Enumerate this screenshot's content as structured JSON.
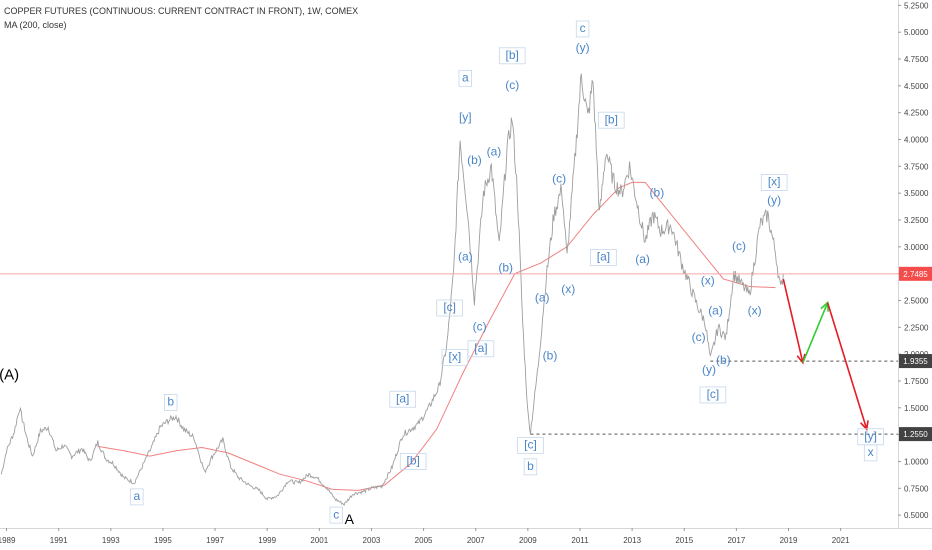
{
  "header": {
    "title": "COPPER FUTURES (CONTINUOUS: CURRENT CONTRACT IN FRONT), 1W, COMEX",
    "indicator": "MA (200, close)"
  },
  "chart_data": {
    "type": "line",
    "title": "COPPER FUTURES (CONTINUOUS: CURRENT CONTRACT IN FRONT), 1W, COMEX",
    "xlabel": "",
    "ylabel": "",
    "xlim": [
      1988.75,
      2023.2
    ],
    "ylim": [
      0.38,
      5.3
    ],
    "x_ticks": [
      "1989",
      "1991",
      "1993",
      "1995",
      "1997",
      "1999",
      "2001",
      "2003",
      "2005",
      "2007",
      "2009",
      "2011",
      "2013",
      "2015",
      "2017",
      "2019",
      "2021"
    ],
    "y_ticks": [
      "0.5000",
      "0.7500",
      "1.0000",
      "1.2500",
      "1.5000",
      "1.7500",
      "2.0000",
      "2.2500",
      "2.5000",
      "2.7500",
      "3.0000",
      "3.2500",
      "3.5000",
      "3.7500",
      "4.0000",
      "4.2500",
      "4.5000",
      "4.7500",
      "5.0000",
      "5.2500"
    ],
    "grid": false,
    "colors": {
      "price": "#9e9e9e",
      "ma": "#f08080",
      "label": "#4a86c8",
      "down_arrow": "#e51c23",
      "up_arrow": "#32cd32",
      "badge_dark": "#424242",
      "badge_red": "#f44b4b"
    },
    "series": [
      {
        "name": "COPPER FUTURES",
        "points": [
          [
            1988.8,
            0.88
          ],
          [
            1989.0,
            1.1
          ],
          [
            1989.3,
            1.28
          ],
          [
            1989.5,
            1.5
          ],
          [
            1989.8,
            1.2
          ],
          [
            1990.0,
            1.05
          ],
          [
            1990.3,
            1.28
          ],
          [
            1990.6,
            1.32
          ],
          [
            1990.9,
            1.1
          ],
          [
            1991.2,
            1.15
          ],
          [
            1991.5,
            1.05
          ],
          [
            1991.9,
            1.12
          ],
          [
            1992.2,
            1.0
          ],
          [
            1992.5,
            1.18
          ],
          [
            1992.8,
            1.03
          ],
          [
            1993.1,
            0.98
          ],
          [
            1993.5,
            0.85
          ],
          [
            1993.9,
            0.8
          ],
          [
            1994.2,
            0.95
          ],
          [
            1994.6,
            1.15
          ],
          [
            1994.9,
            1.32
          ],
          [
            1995.2,
            1.38
          ],
          [
            1995.5,
            1.42
          ],
          [
            1995.8,
            1.3
          ],
          [
            1996.2,
            1.22
          ],
          [
            1996.6,
            0.9
          ],
          [
            1996.9,
            1.05
          ],
          [
            1997.3,
            1.2
          ],
          [
            1997.6,
            0.95
          ],
          [
            1997.9,
            0.85
          ],
          [
            1998.3,
            0.78
          ],
          [
            1998.7,
            0.73
          ],
          [
            1999.0,
            0.65
          ],
          [
            1999.4,
            0.68
          ],
          [
            1999.8,
            0.82
          ],
          [
            2000.2,
            0.8
          ],
          [
            2000.6,
            0.88
          ],
          [
            2000.9,
            0.85
          ],
          [
            2001.3,
            0.75
          ],
          [
            2001.6,
            0.65
          ],
          [
            2001.95,
            0.6
          ],
          [
            2002.3,
            0.7
          ],
          [
            2002.7,
            0.72
          ],
          [
            2003.0,
            0.75
          ],
          [
            2003.4,
            0.77
          ],
          [
            2003.8,
            0.95
          ],
          [
            2004.2,
            1.25
          ],
          [
            2004.5,
            1.3
          ],
          [
            2004.8,
            1.35
          ],
          [
            2005.2,
            1.5
          ],
          [
            2005.6,
            1.7
          ],
          [
            2005.9,
            2.1
          ],
          [
            2006.15,
            2.75
          ],
          [
            2006.4,
            4.0
          ],
          [
            2006.7,
            3.3
          ],
          [
            2006.95,
            2.5
          ],
          [
            2007.3,
            3.5
          ],
          [
            2007.6,
            3.75
          ],
          [
            2007.9,
            3.0
          ],
          [
            2008.2,
            3.9
          ],
          [
            2008.4,
            4.2
          ],
          [
            2008.6,
            3.5
          ],
          [
            2008.8,
            2.3
          ],
          [
            2009.0,
            1.45
          ],
          [
            2009.1,
            1.27
          ],
          [
            2009.4,
            1.9
          ],
          [
            2009.7,
            2.7
          ],
          [
            2010.0,
            3.3
          ],
          [
            2010.3,
            3.55
          ],
          [
            2010.5,
            2.9
          ],
          [
            2010.8,
            3.8
          ],
          [
            2011.05,
            4.6
          ],
          [
            2011.3,
            4.2
          ],
          [
            2011.5,
            4.55
          ],
          [
            2011.75,
            3.3
          ],
          [
            2012.0,
            3.9
          ],
          [
            2012.3,
            3.6
          ],
          [
            2012.6,
            3.5
          ],
          [
            2012.9,
            3.75
          ],
          [
            2013.2,
            3.4
          ],
          [
            2013.5,
            3.05
          ],
          [
            2013.8,
            3.3
          ],
          [
            2014.1,
            3.15
          ],
          [
            2014.5,
            3.2
          ],
          [
            2014.9,
            2.85
          ],
          [
            2015.2,
            2.65
          ],
          [
            2015.5,
            2.45
          ],
          [
            2015.8,
            2.3
          ],
          [
            2016.0,
            1.95
          ],
          [
            2016.3,
            2.25
          ],
          [
            2016.6,
            2.15
          ],
          [
            2016.9,
            2.75
          ],
          [
            2017.2,
            2.65
          ],
          [
            2017.5,
            2.55
          ],
          [
            2017.9,
            3.2
          ],
          [
            2018.2,
            3.3
          ],
          [
            2018.5,
            2.95
          ],
          [
            2018.7,
            2.6
          ],
          [
            2018.8,
            2.75
          ]
        ]
      },
      {
        "name": "MA (200, close)",
        "points": [
          [
            1992.5,
            1.14
          ],
          [
            1993.5,
            1.1
          ],
          [
            1994.5,
            1.05
          ],
          [
            1995.5,
            1.1
          ],
          [
            1996.5,
            1.13
          ],
          [
            1997.5,
            1.08
          ],
          [
            1998.5,
            0.98
          ],
          [
            1999.5,
            0.88
          ],
          [
            2000.5,
            0.82
          ],
          [
            2001.5,
            0.74
          ],
          [
            2002.5,
            0.73
          ],
          [
            2003.5,
            0.78
          ],
          [
            2004.5,
            0.98
          ],
          [
            2005.5,
            1.3
          ],
          [
            2006.5,
            1.82
          ],
          [
            2007.5,
            2.3
          ],
          [
            2008.5,
            2.75
          ],
          [
            2009.5,
            2.85
          ],
          [
            2010.5,
            3.0
          ],
          [
            2011.5,
            3.3
          ],
          [
            2012.5,
            3.55
          ],
          [
            2013.0,
            3.6
          ],
          [
            2013.5,
            3.6
          ],
          [
            2014.5,
            3.3
          ],
          [
            2015.5,
            3.0
          ],
          [
            2016.5,
            2.7
          ],
          [
            2017.5,
            2.63
          ],
          [
            2018.5,
            2.62
          ]
        ]
      }
    ],
    "horizontal_levels": [
      {
        "value": 2.7485,
        "label": "2.7485",
        "style": "solid"
      },
      {
        "value": 1.9355,
        "label": "1.9355",
        "style": "dashed",
        "from_x": 2016.0
      },
      {
        "value": 1.255,
        "label": "1.2550",
        "style": "dashed",
        "from_x": 2009.1
      }
    ],
    "projection_arrows": [
      {
        "from": [
          2018.8,
          2.7
        ],
        "to": [
          2019.55,
          1.92
        ],
        "color": "down_arrow"
      },
      {
        "from": [
          2019.55,
          1.92
        ],
        "to": [
          2020.5,
          2.48
        ],
        "color": "up_arrow"
      },
      {
        "from": [
          2020.5,
          2.48
        ],
        "to": [
          2022.0,
          1.3
        ],
        "color": "down_arrow"
      }
    ],
    "annotations": [
      {
        "text": "(A)",
        "x": 1989.1,
        "y": 1.8,
        "color": "#000000",
        "boxed": false,
        "size": 15
      },
      {
        "text": "b",
        "x": 1995.3,
        "y": 1.55,
        "boxed": true
      },
      {
        "text": "a",
        "x": 1994.0,
        "y": 0.67,
        "boxed": true
      },
      {
        "text": "c",
        "x": 2001.65,
        "y": 0.5,
        "boxed": true
      },
      {
        "text": "A",
        "x": 2002.15,
        "y": 0.45,
        "color": "#000000",
        "boxed": false,
        "size": 14
      },
      {
        "text": "[a]",
        "x": 2004.2,
        "y": 1.58,
        "boxed": true
      },
      {
        "text": "[b]",
        "x": 2004.6,
        "y": 1.0,
        "boxed": true
      },
      {
        "text": "[c]",
        "x": 2006.0,
        "y": 2.43,
        "boxed": true
      },
      {
        "text": "[x]",
        "x": 2006.2,
        "y": 1.97,
        "boxed": true
      },
      {
        "text": "a",
        "x": 2006.6,
        "y": 4.57,
        "boxed": true
      },
      {
        "text": "[y]",
        "x": 2006.6,
        "y": 4.2,
        "boxed": false
      },
      {
        "text": "(b)",
        "x": 2006.95,
        "y": 3.8,
        "boxed": false
      },
      {
        "text": "(a)",
        "x": 2006.6,
        "y": 2.9,
        "boxed": false
      },
      {
        "text": "(c)",
        "x": 2007.15,
        "y": 2.25,
        "boxed": false
      },
      {
        "text": "[a]",
        "x": 2007.2,
        "y": 2.05,
        "boxed": true
      },
      {
        "text": "(a)",
        "x": 2007.7,
        "y": 3.88,
        "boxed": false
      },
      {
        "text": "[b]",
        "x": 2008.4,
        "y": 4.78,
        "boxed": true
      },
      {
        "text": "(c)",
        "x": 2008.4,
        "y": 4.5,
        "boxed": false
      },
      {
        "text": "(b)",
        "x": 2008.15,
        "y": 2.8,
        "boxed": false
      },
      {
        "text": "[c]",
        "x": 2009.1,
        "y": 1.15,
        "boxed": true
      },
      {
        "text": "b",
        "x": 2009.1,
        "y": 0.95,
        "boxed": true
      },
      {
        "text": "(a)",
        "x": 2009.55,
        "y": 2.52,
        "boxed": false
      },
      {
        "text": "(b)",
        "x": 2009.85,
        "y": 1.98,
        "boxed": false
      },
      {
        "text": "(c)",
        "x": 2010.2,
        "y": 3.63,
        "boxed": false
      },
      {
        "text": "(x)",
        "x": 2010.55,
        "y": 2.6,
        "boxed": false
      },
      {
        "text": "c",
        "x": 2011.1,
        "y": 5.03,
        "boxed": true
      },
      {
        "text": "(y)",
        "x": 2011.1,
        "y": 4.85,
        "boxed": false
      },
      {
        "text": "[b]",
        "x": 2012.2,
        "y": 4.18,
        "boxed": true
      },
      {
        "text": "[a]",
        "x": 2011.9,
        "y": 2.9,
        "boxed": true
      },
      {
        "text": "(a)",
        "x": 2013.4,
        "y": 2.88,
        "boxed": false
      },
      {
        "text": "(b)",
        "x": 2013.95,
        "y": 3.5,
        "boxed": false
      },
      {
        "text": "(x)",
        "x": 2015.9,
        "y": 2.68,
        "boxed": false
      },
      {
        "text": "(a)",
        "x": 2016.2,
        "y": 2.4,
        "boxed": false
      },
      {
        "text": "(c)",
        "x": 2015.55,
        "y": 2.15,
        "boxed": false
      },
      {
        "text": "(y)",
        "x": 2015.95,
        "y": 1.85,
        "boxed": false
      },
      {
        "text": "(b)",
        "x": 2016.5,
        "y": 1.94,
        "boxed": false
      },
      {
        "text": "[c]",
        "x": 2016.1,
        "y": 1.62,
        "boxed": true
      },
      {
        "text": "(c)",
        "x": 2017.1,
        "y": 3.0,
        "boxed": false
      },
      {
        "text": "(x)",
        "x": 2017.7,
        "y": 2.4,
        "boxed": false
      },
      {
        "text": "[x]",
        "x": 2018.45,
        "y": 3.6,
        "boxed": true
      },
      {
        "text": "(y)",
        "x": 2018.45,
        "y": 3.43,
        "boxed": false
      },
      {
        "text": "[y]",
        "x": 2022.15,
        "y": 1.23,
        "boxed": true
      },
      {
        "text": "x",
        "x": 2022.15,
        "y": 1.08,
        "boxed": true
      }
    ]
  }
}
